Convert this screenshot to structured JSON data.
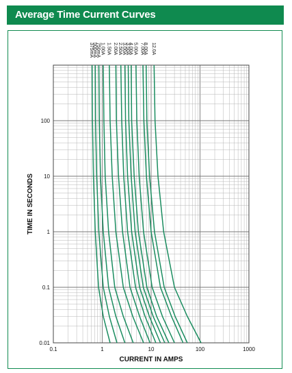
{
  "header": {
    "title": "Average Time Current Curves"
  },
  "chart_data": {
    "type": "line",
    "title": "Average Time Current Curves",
    "xlabel": "CURRENT IN AMPS",
    "ylabel": "TIME IN SECONDS",
    "x_scale": "log",
    "y_scale": "log",
    "xlim": [
      0.1,
      1000
    ],
    "ylim": [
      0.01,
      1000
    ],
    "x_ticks": [
      "0.1",
      "1",
      "10",
      "100",
      "1000"
    ],
    "x_tick_values": [
      0.1,
      1,
      10,
      100,
      1000
    ],
    "y_ticks": [
      "0.01",
      "0.1",
      "1",
      "10",
      "100"
    ],
    "y_tick_values": [
      0.01,
      0.1,
      1,
      10,
      100
    ],
    "grid": true,
    "line_color": "#1a8c5f",
    "series": [
      {
        "name": "375mA",
        "x": [
          0.62,
          0.63,
          0.66,
          0.72,
          0.84,
          1.05,
          1.45
        ],
        "y": [
          1000,
          100,
          10,
          1,
          0.1,
          0.03,
          0.01
        ]
      },
      {
        "name": "500mA",
        "x": [
          0.72,
          0.73,
          0.77,
          0.85,
          1.05,
          1.4,
          2.0
        ],
        "y": [
          1000,
          100,
          10,
          1,
          0.1,
          0.03,
          0.01
        ]
      },
      {
        "name": "750mA",
        "x": [
          0.85,
          0.87,
          0.92,
          1.05,
          1.35,
          1.9,
          2.9
        ],
        "y": [
          1000,
          100,
          10,
          1,
          0.1,
          0.03,
          0.01
        ]
      },
      {
        "name": "1.00A",
        "x": [
          1.05,
          1.08,
          1.15,
          1.35,
          1.8,
          2.7,
          4.3
        ],
        "y": [
          1000,
          100,
          10,
          1,
          0.1,
          0.03,
          0.01
        ]
      },
      {
        "name": "1.50A",
        "x": [
          1.4,
          1.45,
          1.6,
          1.9,
          2.7,
          4.2,
          7.0
        ],
        "y": [
          1000,
          100,
          10,
          1,
          0.1,
          0.03,
          0.01
        ]
      },
      {
        "name": "2.00A",
        "x": [
          1.9,
          1.95,
          2.15,
          2.6,
          3.7,
          5.8,
          9.5
        ],
        "y": [
          1000,
          100,
          10,
          1,
          0.1,
          0.03,
          0.01
        ]
      },
      {
        "name": "2.50A",
        "x": [
          2.4,
          2.5,
          2.75,
          3.3,
          4.8,
          7.5,
          12.5
        ],
        "y": [
          1000,
          100,
          10,
          1,
          0.1,
          0.03,
          0.01
        ]
      },
      {
        "name": "3.00A",
        "x": [
          2.9,
          3.0,
          3.3,
          4.0,
          5.8,
          9.2,
          15.5
        ],
        "y": [
          1000,
          100,
          10,
          1,
          0.1,
          0.03,
          0.01
        ]
      },
      {
        "name": "3.50A",
        "x": [
          3.4,
          3.5,
          3.9,
          4.7,
          6.9,
          11,
          19
        ],
        "y": [
          1000,
          100,
          10,
          1,
          0.1,
          0.03,
          0.01
        ]
      },
      {
        "name": "4.00A",
        "x": [
          3.9,
          4.0,
          4.5,
          5.5,
          8.2,
          13,
          23
        ],
        "y": [
          1000,
          100,
          10,
          1,
          0.1,
          0.03,
          0.01
        ]
      },
      {
        "name": "5.00A",
        "x": [
          4.9,
          5.1,
          5.7,
          7.0,
          10.5,
          17,
          30
        ],
        "y": [
          1000,
          100,
          10,
          1,
          0.1,
          0.03,
          0.01
        ]
      },
      {
        "name": "7.00A",
        "x": [
          6.8,
          7.1,
          8.0,
          10,
          15.5,
          26,
          45
        ],
        "y": [
          1000,
          100,
          10,
          1,
          0.1,
          0.03,
          0.01
        ]
      },
      {
        "name": "8.00A",
        "x": [
          7.9,
          8.2,
          9.3,
          11.7,
          18.5,
          31,
          55
        ],
        "y": [
          1000,
          100,
          10,
          1,
          0.1,
          0.03,
          0.01
        ]
      },
      {
        "name": "12.0A",
        "x": [
          11.5,
          12,
          13.8,
          18,
          30,
          55,
          105
        ],
        "y": [
          1000,
          100,
          10,
          1,
          0.1,
          0.03,
          0.01
        ]
      }
    ]
  }
}
